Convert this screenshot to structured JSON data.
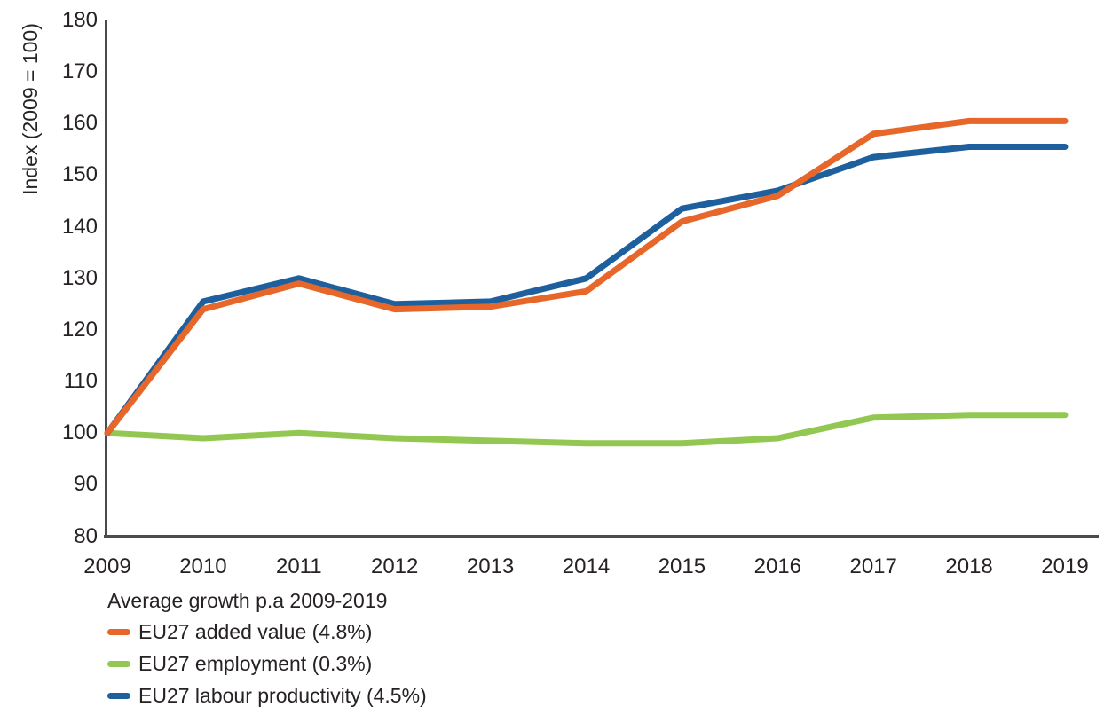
{
  "chart_data": {
    "type": "line",
    "title": "",
    "ylabel": "Index (2009 = 100)",
    "xlabel": "",
    "x": [
      2009,
      2010,
      2011,
      2012,
      2013,
      2014,
      2015,
      2016,
      2017,
      2018,
      2019
    ],
    "y_ticks": [
      180,
      170,
      160,
      150,
      140,
      130,
      120,
      110,
      100,
      90,
      80
    ],
    "ylim": [
      80,
      180
    ],
    "grid": false,
    "legend_title": "Average growth p.a 2009-2019",
    "legend_position": "bottom-left",
    "axis_color": "#4b4b4d",
    "text_color": "#262224",
    "series": [
      {
        "id": "added-value",
        "name": "EU27 added value",
        "legend_label": "EU27 added value (4.8%)",
        "color": "#E7672B",
        "values": [
          100,
          124,
          129,
          124,
          124.5,
          127.5,
          141,
          146,
          158,
          160.5,
          160.5
        ]
      },
      {
        "id": "employment",
        "name": "EU27 employment",
        "legend_label": "EU27 employment (0.3%)",
        "color": "#92C851",
        "values": [
          100,
          99,
          100,
          99,
          98.5,
          98,
          98,
          99,
          103,
          103.5,
          103.5
        ]
      },
      {
        "id": "labour-productivity",
        "name": "EU27 labour productivity",
        "legend_label": "EU27 labour productivity (4.5%)",
        "color": "#1E5F9E",
        "values": [
          100,
          125.5,
          130,
          125,
          125.5,
          130,
          143.5,
          147,
          153.5,
          155.5,
          155.5
        ]
      }
    ]
  }
}
